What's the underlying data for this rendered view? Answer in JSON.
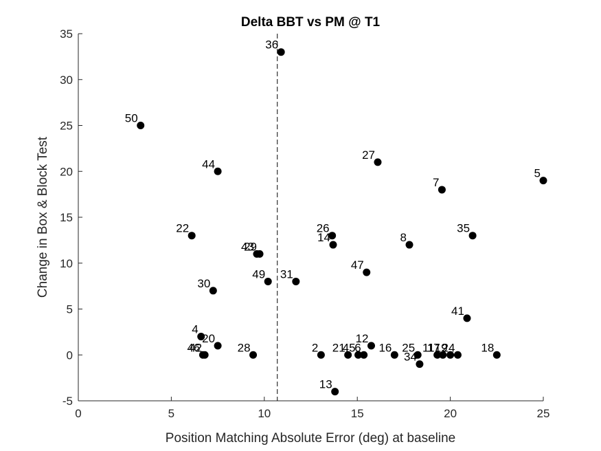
{
  "chart_data": {
    "type": "scatter",
    "title": "Delta BBT vs PM @ T1",
    "xlabel": "Position Matching Absolute Error (deg) at baseline",
    "ylabel": "Change in Box & Block Test",
    "xlim": [
      0,
      25
    ],
    "ylim": [
      -5,
      35
    ],
    "xticks": [
      0,
      5,
      10,
      15,
      20,
      25
    ],
    "yticks": [
      -5,
      0,
      5,
      10,
      15,
      20,
      25,
      30,
      35
    ],
    "grid": false,
    "reference_line": {
      "orientation": "vertical",
      "x": 10.7,
      "style": "dashed"
    },
    "marker_color": "#000000",
    "points": [
      {
        "label": "50",
        "x": 3.35,
        "y": 25
      },
      {
        "label": "36",
        "x": 10.9,
        "y": 33
      },
      {
        "label": "44",
        "x": 7.5,
        "y": 20
      },
      {
        "label": "27",
        "x": 16.1,
        "y": 21
      },
      {
        "label": "7",
        "x": 19.55,
        "y": 18
      },
      {
        "label": "5",
        "x": 25.0,
        "y": 19
      },
      {
        "label": "22",
        "x": 6.1,
        "y": 13
      },
      {
        "label": "26",
        "x": 13.65,
        "y": 13
      },
      {
        "label": "14",
        "x": 13.7,
        "y": 12
      },
      {
        "label": "8",
        "x": 17.8,
        "y": 12
      },
      {
        "label": "35",
        "x": 21.2,
        "y": 13
      },
      {
        "label": "43",
        "x": 9.6,
        "y": 11
      },
      {
        "label": "29",
        "x": 9.75,
        "y": 11
      },
      {
        "label": "47",
        "x": 15.5,
        "y": 9
      },
      {
        "label": "49",
        "x": 10.2,
        "y": 8
      },
      {
        "label": "31",
        "x": 11.7,
        "y": 8
      },
      {
        "label": "30",
        "x": 7.25,
        "y": 7
      },
      {
        "label": "41",
        "x": 20.9,
        "y": 4
      },
      {
        "label": "4",
        "x": 6.6,
        "y": 2
      },
      {
        "label": "46",
        "x": 6.7,
        "y": 0
      },
      {
        "label": "42",
        "x": 6.8,
        "y": 0
      },
      {
        "label": "20",
        "x": 7.5,
        "y": 1
      },
      {
        "label": "28",
        "x": 9.4,
        "y": 0
      },
      {
        "label": "2",
        "x": 13.05,
        "y": 0
      },
      {
        "label": "21",
        "x": 14.5,
        "y": 0
      },
      {
        "label": "45",
        "x": 15.05,
        "y": 0
      },
      {
        "label": "6",
        "x": 15.35,
        "y": 0
      },
      {
        "label": "12",
        "x": 15.75,
        "y": 1
      },
      {
        "label": "16",
        "x": 17.0,
        "y": 0
      },
      {
        "label": "25",
        "x": 18.25,
        "y": 0
      },
      {
        "label": "34",
        "x": 18.35,
        "y": -1
      },
      {
        "label": "11",
        "x": 19.3,
        "y": 0
      },
      {
        "label": "17",
        "x": 19.6,
        "y": 0
      },
      {
        "label": "19",
        "x": 20.0,
        "y": 0
      },
      {
        "label": "24",
        "x": 20.4,
        "y": 0
      },
      {
        "label": "18",
        "x": 22.5,
        "y": 0
      },
      {
        "label": "13",
        "x": 13.8,
        "y": -4
      }
    ]
  }
}
